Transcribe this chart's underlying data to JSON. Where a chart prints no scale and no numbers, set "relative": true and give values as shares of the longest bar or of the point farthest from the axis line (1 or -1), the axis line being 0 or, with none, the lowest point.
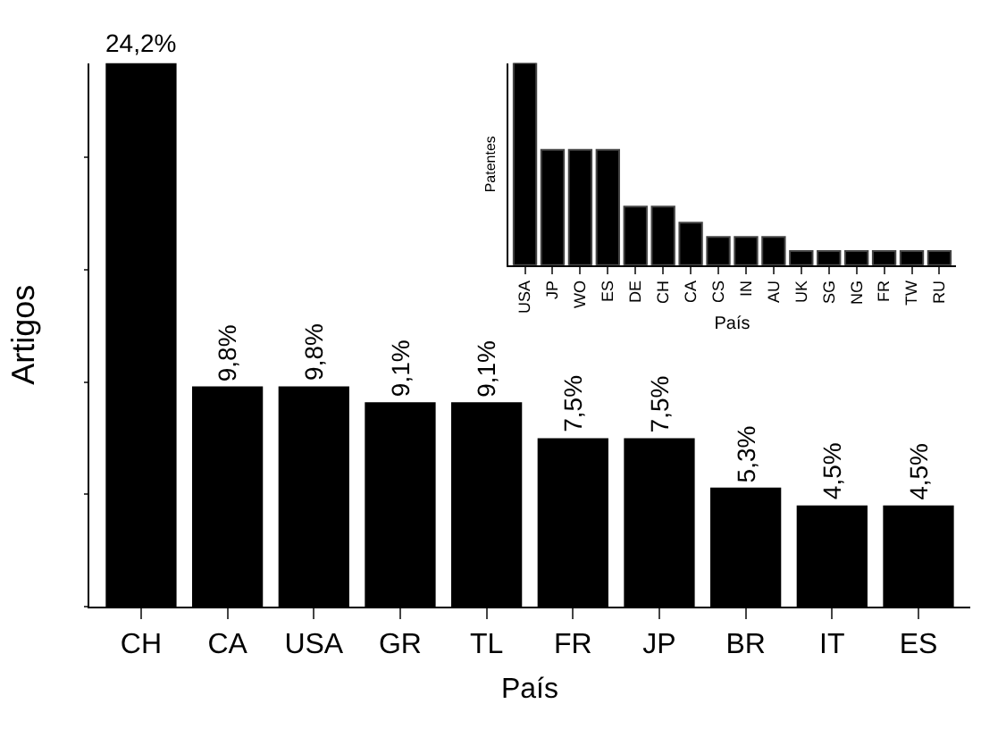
{
  "chart_data": [
    {
      "type": "bar",
      "xlabel": "País",
      "ylabel": "Artigos",
      "categories": [
        "CH",
        "CA",
        "USA",
        "GR",
        "TL",
        "FR",
        "JP",
        "BR",
        "IT",
        "ES"
      ],
      "values": [
        24.2,
        9.8,
        9.8,
        9.1,
        9.1,
        7.5,
        7.5,
        5.3,
        4.5,
        4.5
      ],
      "value_labels": [
        "24,2%",
        "9,8%",
        "9,8%",
        "9,1%",
        "9,1%",
        "7,5%",
        "7,5%",
        "5,3%",
        "4,5%",
        "4,5%"
      ],
      "color": "#000000",
      "tick_labels": "x"
    },
    {
      "type": "bar",
      "relative": true,
      "xlabel": "País",
      "ylabel": "Patentes",
      "categories": [
        "USA",
        "JP",
        "WO",
        "ES",
        "DE",
        "CH",
        "CA",
        "CS",
        "IN",
        "AU",
        "UK",
        "SG",
        "NG",
        "FR",
        "TW",
        "RU"
      ],
      "values": [
        1,
        0.57,
        0.57,
        0.57,
        0.29,
        0.29,
        0.21,
        0.14,
        0.14,
        0.14,
        0.07,
        0.07,
        0.07,
        0.07,
        0.07,
        0.07
      ],
      "color": "#000000",
      "tick_labels": "x"
    }
  ]
}
